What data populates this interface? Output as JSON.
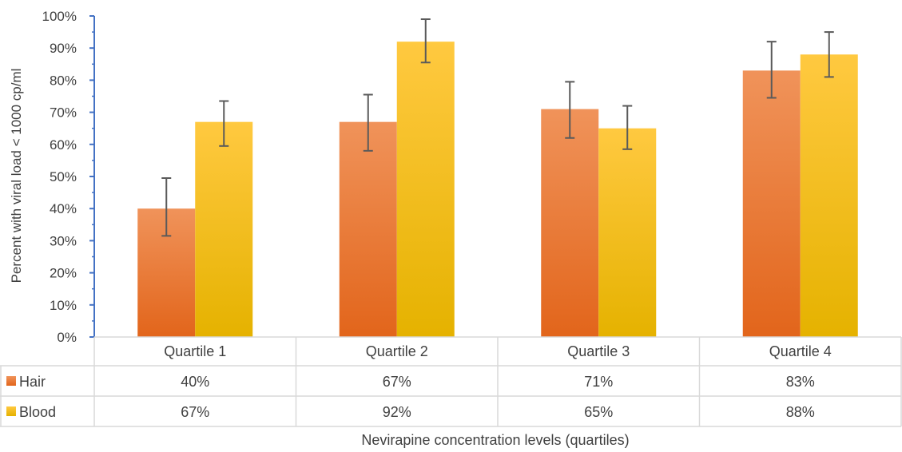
{
  "chart_data": {
    "type": "bar",
    "categories": [
      "Quartile 1",
      "Quartile 2",
      "Quartile 3",
      "Quartile 4"
    ],
    "series": [
      {
        "name": "Hair",
        "values": [
          40,
          67,
          71,
          83
        ],
        "labels": [
          "40%",
          "67%",
          "71%",
          "83%"
        ],
        "error_low": [
          31.5,
          58,
          62,
          74.5
        ],
        "error_high": [
          49.5,
          75.5,
          79.5,
          92
        ],
        "color_top": "#f0935a",
        "color_bottom": "#e2651b"
      },
      {
        "name": "Blood",
        "values": [
          67,
          92,
          65,
          88
        ],
        "labels": [
          "67%",
          "92%",
          "65%",
          "88%"
        ],
        "error_low": [
          59.5,
          85.5,
          58.5,
          81
        ],
        "error_high": [
          73.5,
          99,
          72,
          95
        ],
        "color_top": "#ffc940",
        "color_bottom": "#e5b200"
      }
    ],
    "ylabel": "Percent with viral load < 1000 cp/ml",
    "xlabel": "Nevirapine concentration levels (quartiles)",
    "ylim": [
      0,
      100
    ],
    "yticks": [
      "0%",
      "10%",
      "20%",
      "30%",
      "40%",
      "50%",
      "60%",
      "70%",
      "80%",
      "90%",
      "100%"
    ],
    "grid": false,
    "legend": "data-table",
    "axis_color": "#4472c4"
  }
}
